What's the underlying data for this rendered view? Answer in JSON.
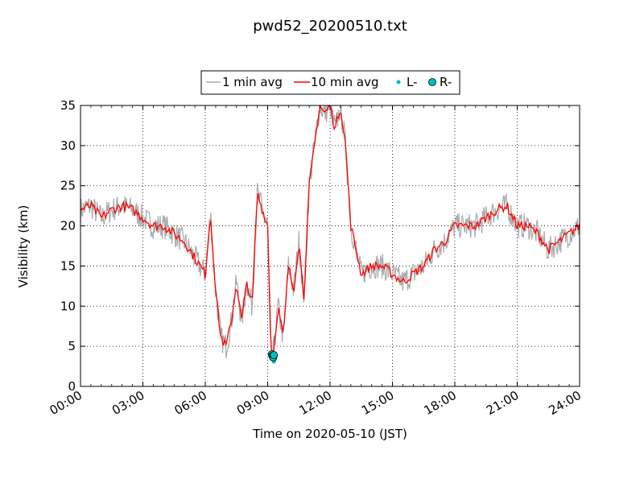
{
  "chart_data": {
    "type": "line",
    "title": "pwd52_20200510.txt",
    "xlabel": "Time on 2020-05-10 (JST)",
    "ylabel": "Visibility (km)",
    "xlim": [
      "00:00",
      "24:00"
    ],
    "ylim": [
      0,
      35
    ],
    "x_tick_labels": [
      "00:00",
      "03:00",
      "06:00",
      "09:00",
      "12:00",
      "15:00",
      "18:00",
      "21:00",
      "24:00"
    ],
    "y_tick_labels": [
      "0",
      "5",
      "10",
      "15",
      "20",
      "25",
      "30",
      "35"
    ],
    "grid": true,
    "legend_position": "top-center, above plot",
    "legend": [
      {
        "label": "1 min avg",
        "color": "#aaaaaa",
        "kind": "line"
      },
      {
        "label": "10 min avg",
        "color": "#ff0000",
        "kind": "line"
      },
      {
        "label": "L-",
        "color": "#00bfbf",
        "kind": "small-dot"
      },
      {
        "label": "R-",
        "color": "#00bfbf",
        "kind": "circle"
      }
    ],
    "series": [
      {
        "name": "1 min avg",
        "color": "#aaaaaa",
        "noise": 1.6,
        "x": [
          "00:00",
          "00:30",
          "01:00",
          "01:30",
          "02:00",
          "02:30",
          "03:00",
          "03:30",
          "04:00",
          "04:30",
          "05:00",
          "05:30",
          "06:00",
          "06:15",
          "06:30",
          "06:45",
          "07:00",
          "07:15",
          "07:30",
          "07:45",
          "08:00",
          "08:15",
          "08:30",
          "08:45",
          "09:00",
          "09:10",
          "09:15",
          "09:30",
          "09:45",
          "10:00",
          "10:15",
          "10:30",
          "10:45",
          "11:00",
          "11:15",
          "11:30",
          "11:45",
          "12:00",
          "12:15",
          "12:30",
          "12:45",
          "13:00",
          "13:30",
          "14:00",
          "14:30",
          "15:00",
          "15:30",
          "16:00",
          "16:30",
          "17:00",
          "17:30",
          "18:00",
          "18:30",
          "19:00",
          "19:30",
          "20:00",
          "20:30",
          "21:00",
          "21:30",
          "22:00",
          "22:30",
          "23:00",
          "23:30",
          "24:00"
        ],
        "y": [
          22,
          22.5,
          21,
          22,
          22.5,
          22,
          21,
          20,
          20,
          19,
          18,
          16,
          14,
          21.5,
          12,
          6,
          5,
          8,
          13,
          8,
          13,
          10,
          24,
          22,
          20,
          4,
          3.5,
          10,
          6,
          15,
          12,
          18,
          11,
          25,
          30,
          35,
          34,
          35,
          32,
          35,
          30,
          20,
          14,
          15,
          15,
          14,
          13,
          14,
          15,
          17,
          18,
          20,
          20,
          20,
          21,
          22,
          22.5,
          20,
          20,
          19,
          17,
          18,
          19,
          20
        ]
      },
      {
        "name": "10 min avg",
        "color": "#ff0000",
        "noise": 0.6,
        "x": [
          "00:00",
          "00:30",
          "01:00",
          "01:30",
          "02:00",
          "02:30",
          "03:00",
          "03:30",
          "04:00",
          "04:30",
          "05:00",
          "05:30",
          "06:00",
          "06:15",
          "06:30",
          "06:45",
          "07:00",
          "07:15",
          "07:30",
          "07:45",
          "08:00",
          "08:15",
          "08:30",
          "08:45",
          "09:00",
          "09:10",
          "09:15",
          "09:30",
          "09:45",
          "10:00",
          "10:15",
          "10:30",
          "10:45",
          "11:00",
          "11:15",
          "11:30",
          "11:45",
          "12:00",
          "12:15",
          "12:30",
          "12:45",
          "13:00",
          "13:30",
          "14:00",
          "14:30",
          "15:00",
          "15:30",
          "16:00",
          "16:30",
          "17:00",
          "17:30",
          "18:00",
          "18:30",
          "19:00",
          "19:30",
          "20:00",
          "20:30",
          "21:00",
          "21:30",
          "22:00",
          "22:30",
          "23:00",
          "23:30",
          "24:00"
        ],
        "y": [
          22,
          22.5,
          21,
          22,
          22.5,
          22,
          21,
          20,
          20,
          19,
          18,
          16,
          14,
          21.5,
          12,
          6,
          5,
          8,
          13,
          8,
          13,
          10,
          24,
          22,
          20,
          4,
          3.5,
          10,
          6,
          15,
          12,
          18,
          11,
          25,
          30,
          35,
          34,
          35,
          32,
          35,
          30,
          20,
          14,
          15,
          15,
          14,
          13,
          14,
          15,
          17,
          18,
          20,
          20,
          20,
          21,
          22,
          22.5,
          20,
          20,
          19,
          17,
          18,
          19,
          20
        ]
      },
      {
        "name": "L-",
        "color": "#00bfbf",
        "kind": "points",
        "x": [
          "09:15",
          "09:17",
          "09:18",
          "09:20"
        ],
        "y": [
          3.6,
          3.3,
          3.1,
          3.4
        ]
      },
      {
        "name": "R-",
        "color": "#00bfbf",
        "kind": "circles",
        "x": [
          "09:12",
          "09:14",
          "09:16",
          "09:18"
        ],
        "y": [
          4.0,
          3.8,
          3.6,
          3.9
        ]
      }
    ]
  }
}
